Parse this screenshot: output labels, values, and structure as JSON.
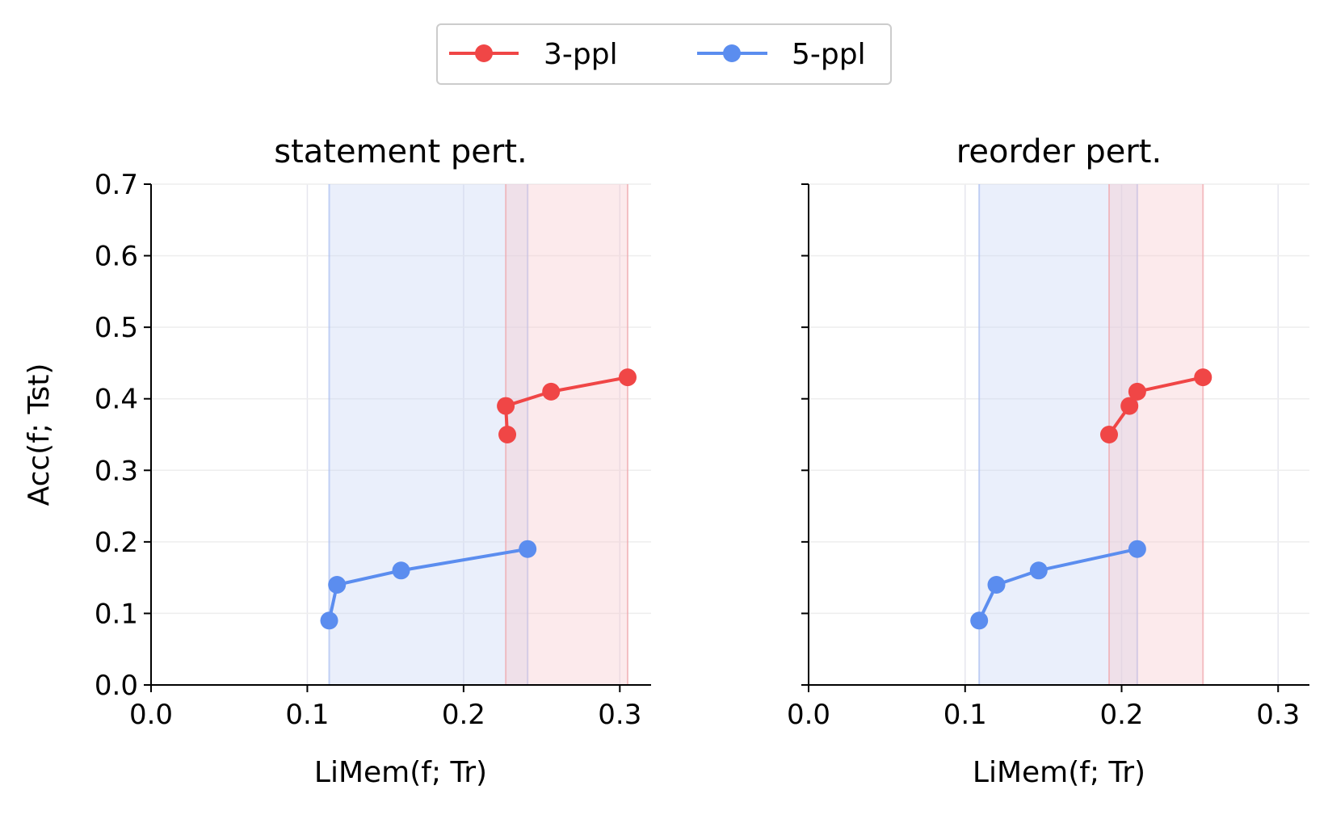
{
  "legend": {
    "placement": "top-center",
    "entries": [
      {
        "label": "3-ppl",
        "color": "#f04646"
      },
      {
        "label": "5-ppl",
        "color": "#5b8def"
      }
    ]
  },
  "colors": {
    "red": "#f04646",
    "blue": "#5b8def",
    "red_band": "#f8c8cc",
    "blue_band": "#c7d5f5"
  },
  "chart_data": [
    {
      "type": "line",
      "title": "statement pert.",
      "xlabel": "LiMem(f; Tr)",
      "ylabel": "Acc(f; Tst)",
      "xlim": [
        0,
        0.32
      ],
      "ylim": [
        0,
        0.7
      ],
      "xticks": [
        "0.0",
        "0.1",
        "0.2",
        "0.3"
      ],
      "yticks": [
        "0.0",
        "0.1",
        "0.2",
        "0.3",
        "0.4",
        "0.5",
        "0.6",
        "0.7"
      ],
      "grid": true,
      "series": [
        {
          "name": "3-ppl",
          "color": "red",
          "band": [
            0.227,
            0.305
          ],
          "x": [
            0.228,
            0.227,
            0.256,
            0.305
          ],
          "y": [
            0.35,
            0.39,
            0.41,
            0.43
          ]
        },
        {
          "name": "5-ppl",
          "color": "blue",
          "band": [
            0.114,
            0.241
          ],
          "x": [
            0.114,
            0.119,
            0.16,
            0.241
          ],
          "y": [
            0.09,
            0.14,
            0.16,
            0.19
          ]
        }
      ]
    },
    {
      "type": "line",
      "title": "reorder pert.",
      "xlabel": "LiMem(f; Tr)",
      "ylabel": "",
      "xlim": [
        0,
        0.32
      ],
      "ylim": [
        0,
        0.7
      ],
      "xticks": [
        "0.0",
        "0.1",
        "0.2",
        "0.3"
      ],
      "yticks": [],
      "grid": true,
      "series": [
        {
          "name": "3-ppl",
          "color": "red",
          "band": [
            0.192,
            0.252
          ],
          "x": [
            0.192,
            0.205,
            0.21,
            0.252
          ],
          "y": [
            0.35,
            0.39,
            0.41,
            0.43
          ]
        },
        {
          "name": "5-ppl",
          "color": "blue",
          "band": [
            0.109,
            0.21
          ],
          "x": [
            0.109,
            0.12,
            0.147,
            0.21
          ],
          "y": [
            0.09,
            0.14,
            0.16,
            0.19
          ]
        }
      ]
    }
  ]
}
